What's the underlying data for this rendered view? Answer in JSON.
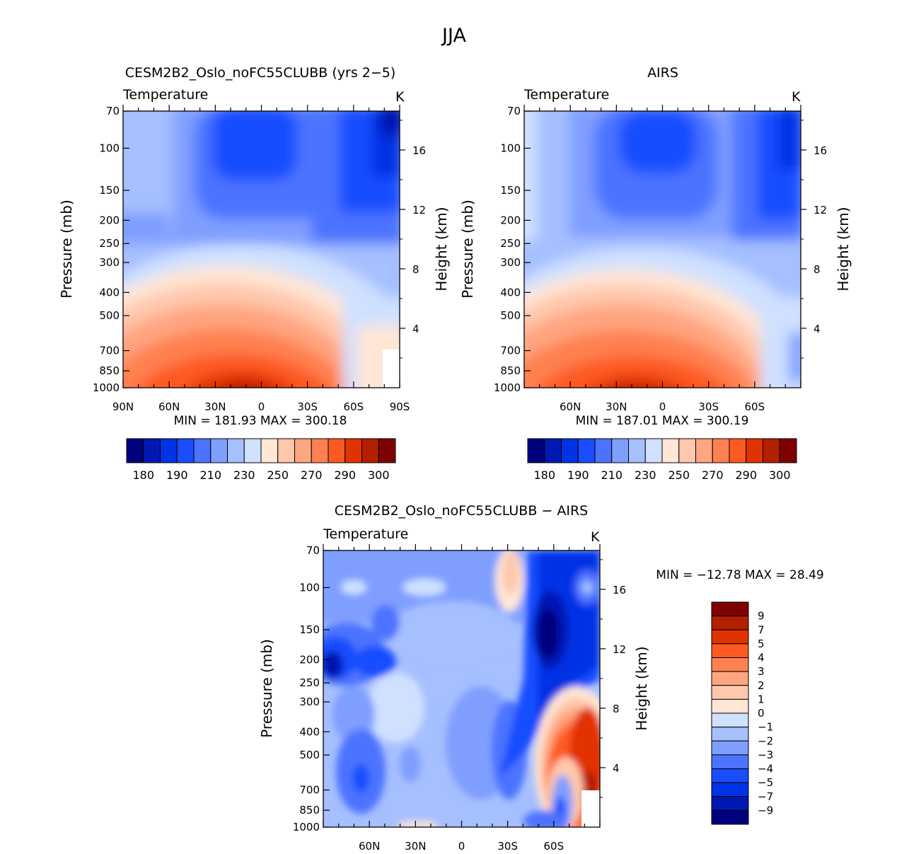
{
  "figure": {
    "title": "JJA"
  },
  "chart_data": [
    {
      "type": "heatmap",
      "panel": "model",
      "title": "CESM2B2_Oslo_noFC55CLUBB (yrs 2−5)",
      "variable": "Temperature",
      "units": "K",
      "ylabel": "Pressure (mb)",
      "ylabel_right": "Height (km)",
      "x_ticks": [
        "90N",
        "60N",
        "30N",
        "0",
        "30S",
        "60S",
        "90S"
      ],
      "pressure_ticks": [
        "70",
        "100",
        "150",
        "200",
        "250",
        "300",
        "400",
        "500",
        "700",
        "850",
        "1000"
      ],
      "height_ticks": [
        "16",
        "12",
        "8",
        "4"
      ],
      "stats": {
        "min": "181.93",
        "max": "300.18"
      },
      "stats_text": "MIN = 181.93   MAX = 300.18",
      "colorbar_labels": [
        "180",
        "190",
        "210",
        "230",
        "250",
        "270",
        "290",
        "300"
      ],
      "colorbar_colors": [
        "#00007f",
        "#0019b3",
        "#0033e5",
        "#194dff",
        "#4c73ff",
        "#7f9fff",
        "#a6bfff",
        "#cfe1ff",
        "#ffe6d5",
        "#ffc8ad",
        "#ffa580",
        "#ff8050",
        "#fd5a22",
        "#e13300",
        "#b41f00",
        "#7f0000"
      ]
    },
    {
      "type": "heatmap",
      "panel": "obs",
      "title": "AIRS",
      "variable": "Temperature",
      "units": "K",
      "ylabel": "Pressure (mb)",
      "ylabel_right": "Height (km)",
      "x_ticks": [
        "60N",
        "30N",
        "0",
        "30S",
        "60S"
      ],
      "pressure_ticks": [
        "70",
        "100",
        "150",
        "200",
        "250",
        "300",
        "400",
        "500",
        "700",
        "850",
        "1000"
      ],
      "height_ticks": [
        "16",
        "12",
        "8",
        "4"
      ],
      "stats": {
        "min": "187.01",
        "max": "300.19"
      },
      "stats_text": "MIN = 187.01   MAX = 300.19",
      "colorbar_labels": [
        "180",
        "190",
        "210",
        "230",
        "250",
        "270",
        "290",
        "300"
      ],
      "colorbar_colors": [
        "#00007f",
        "#0019b3",
        "#0033e5",
        "#194dff",
        "#4c73ff",
        "#7f9fff",
        "#a6bfff",
        "#cfe1ff",
        "#ffe6d5",
        "#ffc8ad",
        "#ffa580",
        "#ff8050",
        "#fd5a22",
        "#e13300",
        "#b41f00",
        "#7f0000"
      ]
    },
    {
      "type": "heatmap",
      "panel": "difference",
      "title": "CESM2B2_Oslo_noFC55CLUBB − AIRS",
      "variable": "Temperature",
      "units": "K",
      "ylabel": "Pressure (mb)",
      "ylabel_right": "Height (km)",
      "x_ticks": [
        "60N",
        "30N",
        "0",
        "30S",
        "60S"
      ],
      "pressure_ticks": [
        "70",
        "100",
        "150",
        "200",
        "250",
        "300",
        "400",
        "500",
        "700",
        "850",
        "1000"
      ],
      "height_ticks": [
        "16",
        "12",
        "8",
        "4"
      ],
      "stats": {
        "min": "−12.78",
        "max": "28.49"
      },
      "stats_text": "MIN = −12.78   MAX =   28.49",
      "colorbar_labels": [
        "9",
        "7",
        "5",
        "4",
        "3",
        "2",
        "1",
        "0",
        "−1",
        "−2",
        "−3",
        "−4",
        "−5",
        "−7",
        "−9"
      ],
      "colorbar_colors": [
        "#7f0000",
        "#b41f00",
        "#e13300",
        "#fd5a22",
        "#ff8050",
        "#ffa580",
        "#ffc8ad",
        "#ffe6d5",
        "#cfe1ff",
        "#a6bfff",
        "#7f9fff",
        "#4c73ff",
        "#194dff",
        "#0033e5",
        "#0019b3",
        "#00007f"
      ]
    }
  ]
}
